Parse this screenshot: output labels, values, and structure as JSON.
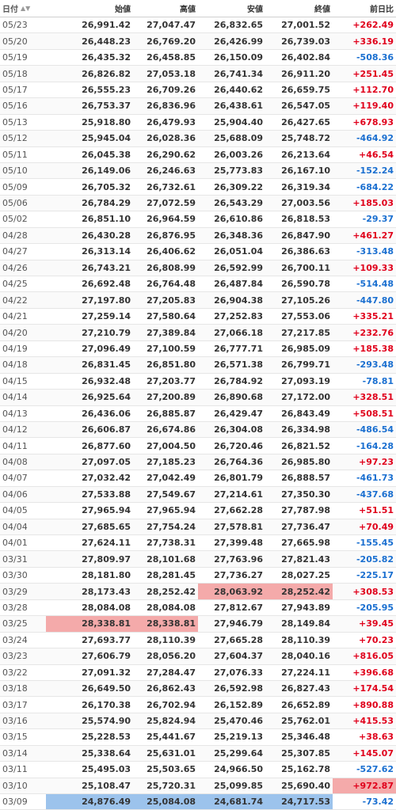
{
  "headers": {
    "date": "日付",
    "open": "始値",
    "high": "高値",
    "low": "安値",
    "close": "終値",
    "change": "前日比"
  },
  "sort_icon": "sort-triangle-icon",
  "colors": {
    "positive": "#e0001b",
    "negative": "#1a6fd0",
    "highlight_high": "#f4aaaa",
    "highlight_low": "#9cc3ec"
  },
  "rows": [
    [
      "05/23",
      "26,991.42",
      "27,047.47",
      "26,832.65",
      "27,001.52",
      "+262.49"
    ],
    [
      "05/20",
      "26,448.23",
      "26,769.20",
      "26,426.99",
      "26,739.03",
      "+336.19"
    ],
    [
      "05/19",
      "26,435.32",
      "26,458.85",
      "26,150.09",
      "26,402.84",
      "-508.36"
    ],
    [
      "05/18",
      "26,826.82",
      "27,053.18",
      "26,741.34",
      "26,911.20",
      "+251.45"
    ],
    [
      "05/17",
      "26,555.23",
      "26,709.26",
      "26,440.62",
      "26,659.75",
      "+112.70"
    ],
    [
      "05/16",
      "26,753.37",
      "26,836.96",
      "26,438.61",
      "26,547.05",
      "+119.40"
    ],
    [
      "05/13",
      "25,918.80",
      "26,479.93",
      "25,904.40",
      "26,427.65",
      "+678.93"
    ],
    [
      "05/12",
      "25,945.04",
      "26,028.36",
      "25,688.09",
      "25,748.72",
      "-464.92"
    ],
    [
      "05/11",
      "26,045.38",
      "26,290.62",
      "26,003.26",
      "26,213.64",
      "+46.54"
    ],
    [
      "05/10",
      "26,149.06",
      "26,246.63",
      "25,773.83",
      "26,167.10",
      "-152.24"
    ],
    [
      "05/09",
      "26,705.32",
      "26,732.61",
      "26,309.22",
      "26,319.34",
      "-684.22"
    ],
    [
      "05/06",
      "26,784.29",
      "27,072.59",
      "26,543.29",
      "27,003.56",
      "+185.03"
    ],
    [
      "05/02",
      "26,851.10",
      "26,964.59",
      "26,610.86",
      "26,818.53",
      "-29.37"
    ],
    [
      "04/28",
      "26,430.28",
      "26,876.95",
      "26,348.36",
      "26,847.90",
      "+461.27"
    ],
    [
      "04/27",
      "26,313.14",
      "26,406.62",
      "26,051.04",
      "26,386.63",
      "-313.48"
    ],
    [
      "04/26",
      "26,743.21",
      "26,808.99",
      "26,592.99",
      "26,700.11",
      "+109.33"
    ],
    [
      "04/25",
      "26,692.48",
      "26,764.48",
      "26,487.84",
      "26,590.78",
      "-514.48"
    ],
    [
      "04/22",
      "27,197.80",
      "27,205.83",
      "26,904.38",
      "27,105.26",
      "-447.80"
    ],
    [
      "04/21",
      "27,259.14",
      "27,580.64",
      "27,252.83",
      "27,553.06",
      "+335.21"
    ],
    [
      "04/20",
      "27,210.79",
      "27,389.84",
      "27,066.18",
      "27,217.85",
      "+232.76"
    ],
    [
      "04/19",
      "27,096.49",
      "27,100.59",
      "26,777.71",
      "26,985.09",
      "+185.38"
    ],
    [
      "04/18",
      "26,831.45",
      "26,851.80",
      "26,571.38",
      "26,799.71",
      "-293.48"
    ],
    [
      "04/15",
      "26,932.48",
      "27,203.77",
      "26,784.92",
      "27,093.19",
      "-78.81"
    ],
    [
      "04/14",
      "26,925.64",
      "27,200.89",
      "26,890.68",
      "27,172.00",
      "+328.51"
    ],
    [
      "04/13",
      "26,436.06",
      "26,885.87",
      "26,429.47",
      "26,843.49",
      "+508.51"
    ],
    [
      "04/12",
      "26,606.87",
      "26,674.86",
      "26,304.08",
      "26,334.98",
      "-486.54"
    ],
    [
      "04/11",
      "26,877.60",
      "27,004.50",
      "26,720.46",
      "26,821.52",
      "-164.28"
    ],
    [
      "04/08",
      "27,097.05",
      "27,185.23",
      "26,764.36",
      "26,985.80",
      "+97.23"
    ],
    [
      "04/07",
      "27,032.42",
      "27,042.49",
      "26,801.79",
      "26,888.57",
      "-461.73"
    ],
    [
      "04/06",
      "27,533.88",
      "27,549.67",
      "27,214.61",
      "27,350.30",
      "-437.68"
    ],
    [
      "04/05",
      "27,965.94",
      "27,965.94",
      "27,662.28",
      "27,787.98",
      "+51.51"
    ],
    [
      "04/04",
      "27,685.65",
      "27,754.24",
      "27,578.81",
      "27,736.47",
      "+70.49"
    ],
    [
      "04/01",
      "27,624.11",
      "27,738.31",
      "27,399.48",
      "27,665.98",
      "-155.45"
    ],
    [
      "03/31",
      "27,809.97",
      "28,101.68",
      "27,763.96",
      "27,821.43",
      "-205.82"
    ],
    [
      "03/30",
      "28,181.80",
      "28,281.45",
      "27,736.27",
      "28,027.25",
      "-225.17"
    ],
    [
      "03/29",
      "28,173.43",
      "28,252.42",
      "28,063.92",
      "28,252.42",
      "+308.53"
    ],
    [
      "03/28",
      "28,084.08",
      "28,084.08",
      "27,812.67",
      "27,943.89",
      "-205.95"
    ],
    [
      "03/25",
      "28,338.81",
      "28,338.81",
      "27,946.79",
      "28,149.84",
      "+39.45"
    ],
    [
      "03/24",
      "27,693.77",
      "28,110.39",
      "27,665.28",
      "28,110.39",
      "+70.23"
    ],
    [
      "03/23",
      "27,606.79",
      "28,056.20",
      "27,604.37",
      "28,040.16",
      "+816.05"
    ],
    [
      "03/22",
      "27,091.32",
      "27,284.47",
      "27,076.33",
      "27,224.11",
      "+396.68"
    ],
    [
      "03/18",
      "26,649.50",
      "26,862.43",
      "26,592.98",
      "26,827.43",
      "+174.54"
    ],
    [
      "03/17",
      "26,170.38",
      "26,702.94",
      "26,152.89",
      "26,652.89",
      "+890.88"
    ],
    [
      "03/16",
      "25,574.90",
      "25,824.94",
      "25,470.46",
      "25,762.01",
      "+415.53"
    ],
    [
      "03/15",
      "25,228.53",
      "25,441.67",
      "25,219.13",
      "25,346.48",
      "+38.63"
    ],
    [
      "03/14",
      "25,338.64",
      "25,631.01",
      "25,299.64",
      "25,307.85",
      "+145.07"
    ],
    [
      "03/11",
      "25,495.03",
      "25,503.65",
      "24,966.50",
      "25,162.78",
      "-527.62"
    ],
    [
      "03/10",
      "25,108.47",
      "25,720.31",
      "25,099.85",
      "25,690.40",
      "+972.87"
    ],
    [
      "03/09",
      "24,876.49",
      "25,084.08",
      "24,681.74",
      "24,717.53",
      "-73.42"
    ]
  ],
  "highlights": [
    {
      "row": 35,
      "cols": [
        3,
        4
      ],
      "tone": "red"
    },
    {
      "row": 37,
      "cols": [
        1,
        2
      ],
      "tone": "red"
    },
    {
      "row": 47,
      "cols": [
        5
      ],
      "tone": "red"
    },
    {
      "row": 48,
      "cols": [
        1,
        2,
        3,
        4
      ],
      "tone": "blue"
    }
  ]
}
